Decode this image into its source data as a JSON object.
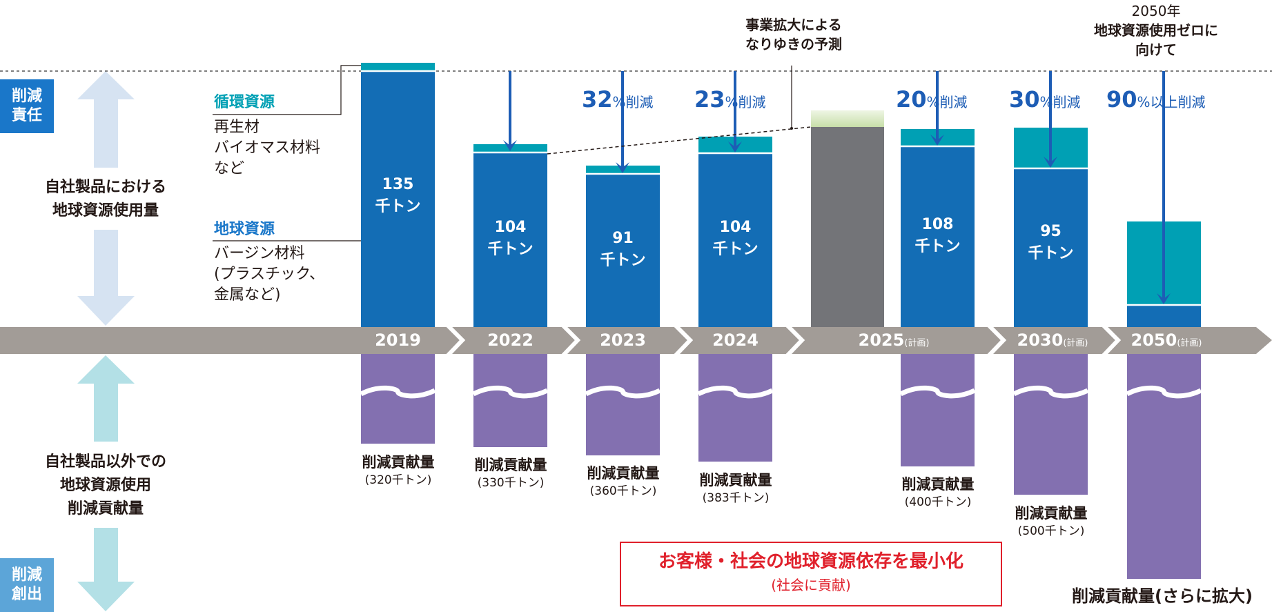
{
  "colors": {
    "earth_resource": "#136db5",
    "circular_resource": "#00a0b4",
    "forecast_gray": "#737478",
    "forecast_green": "#c8dfa9",
    "contribution_purple": "#8370b0",
    "timeline": "#a29c97",
    "arrow_blue": "#1d5db5",
    "tag_blue": "#1a77c9",
    "tag_light": "#5ca5d8",
    "arrow_up_light": "#d6e3f2",
    "arrow_down_light": "#b3e0e6",
    "red": "#e0202b"
  },
  "left": {
    "tag_top": "削減\n責任",
    "tag_top_lines": [
      "削減",
      "責任"
    ],
    "label_top_lines": [
      "自社製品における",
      "地球資源使用量"
    ],
    "label_bottom_lines": [
      "自社製品以外での",
      "地球資源使用",
      "削減貢献量"
    ],
    "tag_bottom_lines": [
      "削減",
      "創出"
    ]
  },
  "legend": {
    "circular_title": "循環資源",
    "circular_body": [
      "再生材",
      "バイオマス材料",
      "など"
    ],
    "earth_title": "地球資源",
    "earth_body": [
      "バージン材料",
      "(プラスチック、",
      "金属など)"
    ]
  },
  "annotations": {
    "forecast_lines": [
      "事業拡大による",
      "なりゆきの予測"
    ],
    "goal_lines": [
      "2050年",
      "地球資源使用ゼロに",
      "向けて"
    ]
  },
  "timeline": [
    {
      "year": "2019",
      "plan": ""
    },
    {
      "year": "2022",
      "plan": ""
    },
    {
      "year": "2023",
      "plan": ""
    },
    {
      "year": "2024",
      "plan": ""
    },
    {
      "year": "2025",
      "plan": "(計画)"
    },
    {
      "year": "2030",
      "plan": "(計画)"
    },
    {
      "year": "2050",
      "plan": "(計画)"
    }
  ],
  "chart_data": {
    "type": "bar",
    "title": "",
    "unit": "千トン",
    "categories": [
      "2019",
      "2022",
      "2023",
      "2024",
      "2025 なりゆき予測",
      "2025(計画)",
      "2030(計画)",
      "2050(計画)"
    ],
    "bars": [
      {
        "key": "2019",
        "value_label": "135",
        "unit_label": "千トン",
        "reduction_num": "",
        "reduction_unit": "",
        "contrib_title": "削減貢献量",
        "contrib_value": "(320千トン)",
        "contrib_level": 320
      },
      {
        "key": "2022",
        "value_label": "104",
        "unit_label": "千トン",
        "reduction_num": "",
        "reduction_unit": "",
        "contrib_title": "削減貢献量",
        "contrib_value": "(330千トン)",
        "contrib_level": 330
      },
      {
        "key": "2023",
        "value_label": "91",
        "unit_label": "千トン",
        "reduction_num": "32",
        "reduction_unit": "%削減",
        "contrib_title": "削減貢献量",
        "contrib_value": "(360千トン)",
        "contrib_level": 360
      },
      {
        "key": "2024",
        "value_label": "104",
        "unit_label": "千トン",
        "reduction_num": "23",
        "reduction_unit": "%削減",
        "contrib_title": "削減貢献量",
        "contrib_value": "(383千トン)",
        "contrib_level": 383
      },
      {
        "key": "2025-forecast",
        "value_label": "",
        "unit_label": "",
        "reduction_num": "",
        "reduction_unit": "",
        "contrib_title": "",
        "contrib_value": ""
      },
      {
        "key": "2025",
        "value_label": "108",
        "unit_label": "千トン",
        "reduction_num": "20",
        "reduction_unit": "%削減",
        "contrib_title": "削減貢献量",
        "contrib_value": "(400千トン)",
        "contrib_level": 400
      },
      {
        "key": "2030",
        "value_label": "95",
        "unit_label": "千トン",
        "reduction_num": "30",
        "reduction_unit": "%削減",
        "contrib_title": "削減貢献量",
        "contrib_value": "(500千トン)",
        "contrib_level": 500
      },
      {
        "key": "2050",
        "value_label": "",
        "unit_label": "",
        "reduction_num": "90",
        "reduction_unit": "%以上削減",
        "contrib_title": "削減貢献量(さらに拡大)",
        "contrib_value": ""
      }
    ],
    "earth_resource_kt": [
      135,
      104,
      91,
      104,
      null,
      108,
      95,
      null
    ],
    "contribution_kt": [
      320,
      330,
      360,
      383,
      null,
      400,
      500,
      null
    ],
    "reduction_pct": [
      null,
      null,
      32,
      23,
      null,
      20,
      30,
      90
    ]
  },
  "bottom_box": {
    "line1": "お客様・社会の地球資源依存を最小化",
    "line2": "(社会に貢献)"
  }
}
